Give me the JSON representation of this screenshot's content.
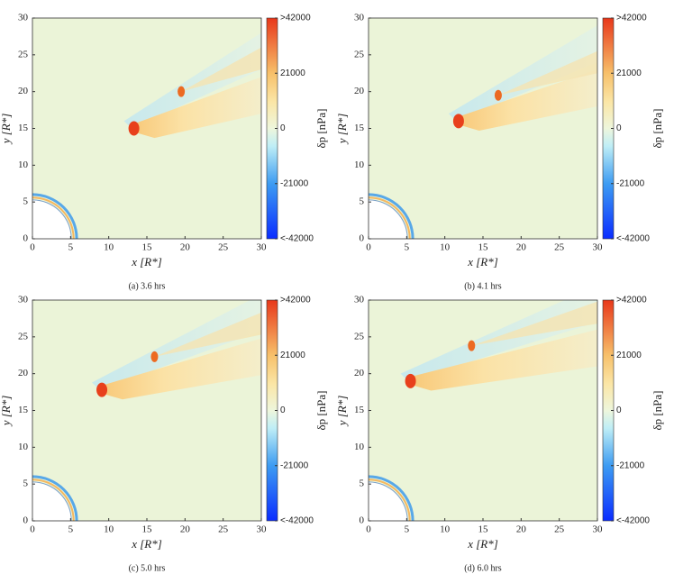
{
  "chart_data": [
    {
      "type": "heatmap",
      "caption": "(a) 3.6 hrs",
      "xlabel": "x [R*]",
      "ylabel": "y [R*]",
      "xlim": [
        0,
        30
      ],
      "ylim": [
        0,
        30
      ],
      "xticks": [
        0,
        5,
        10,
        15,
        20,
        25,
        30
      ],
      "yticks": [
        0,
        5,
        10,
        15,
        20,
        25,
        30
      ],
      "clabel": "δp [nPa]",
      "clim": [
        -42000,
        42000
      ],
      "cticks": [
        {
          "value": -42000,
          "label": "<-42000"
        },
        -21000,
        0,
        21000,
        {
          "value": 42000,
          "label": ">42000"
        }
      ]
    },
    {
      "type": "heatmap",
      "caption": "(b) 4.1 hrs",
      "xlabel": "x [R*]",
      "ylabel": "y [R*]",
      "xlim": [
        0,
        30
      ],
      "ylim": [
        0,
        30
      ],
      "xticks": [
        0,
        5,
        10,
        15,
        20,
        25,
        30
      ],
      "yticks": [
        0,
        5,
        10,
        15,
        20,
        25,
        30
      ],
      "clabel": "δp [nPa]",
      "clim": [
        -42000,
        42000
      ],
      "cticks": [
        {
          "value": -42000,
          "label": "<-42000"
        },
        -21000,
        0,
        21000,
        {
          "value": 42000,
          "label": ">42000"
        }
      ]
    },
    {
      "type": "heatmap",
      "caption": "(c) 5.0 hrs",
      "xlabel": "x [R*]",
      "ylabel": "y [R*]",
      "xlim": [
        0,
        30
      ],
      "ylim": [
        0,
        30
      ],
      "xticks": [
        0,
        5,
        10,
        15,
        20,
        25,
        30
      ],
      "yticks": [
        0,
        5,
        10,
        15,
        20,
        25,
        30
      ],
      "clabel": "δp [nPa]",
      "clim": [
        -42000,
        42000
      ],
      "cticks": [
        {
          "value": -42000,
          "label": "<-42000"
        },
        -21000,
        0,
        21000,
        {
          "value": 42000,
          "label": ">42000"
        }
      ]
    },
    {
      "type": "heatmap",
      "caption": "(d) 6.0 hrs",
      "xlabel": "x [R*]",
      "ylabel": "y [R*]",
      "xlim": [
        0,
        30
      ],
      "ylim": [
        0,
        30
      ],
      "xticks": [
        0,
        5,
        10,
        15,
        20,
        25,
        30
      ],
      "yticks": [
        0,
        5,
        10,
        15,
        20,
        25,
        30
      ],
      "clabel": "δp [nPa]",
      "clim": [
        -42000,
        42000
      ],
      "cticks": [
        {
          "value": -42000,
          "label": "<-42000"
        },
        -21000,
        0,
        21000,
        {
          "value": 42000,
          "label": ">42000"
        }
      ]
    }
  ]
}
